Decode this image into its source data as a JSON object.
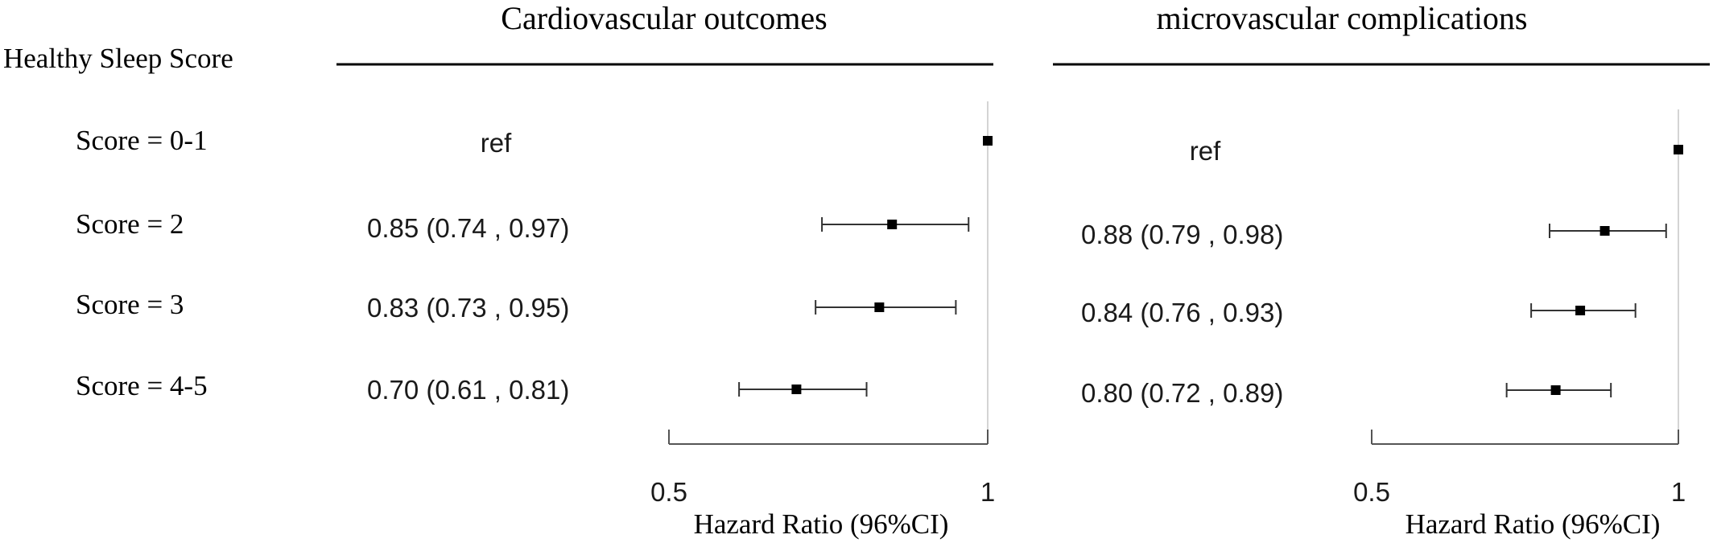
{
  "row_header": "Healthy Sleep Score",
  "rows": [
    "Score = 0-1",
    "Score = 2",
    "Score = 3",
    "Score = 4-5"
  ],
  "chart_data": [
    {
      "type": "forest",
      "title": "Cardiovascular outcomes",
      "xlabel": "Hazard Ratio (96%CI)",
      "xlim": [
        0.5,
        1
      ],
      "ticks": [
        0.5,
        1
      ],
      "tick_labels": [
        "0.5",
        "1"
      ],
      "reference_line": 1,
      "categories": [
        "Score = 0-1",
        "Score = 2",
        "Score = 3",
        "Score = 4-5"
      ],
      "labels": [
        "ref",
        "0.85 (0.74 , 0.97)",
        "0.83 (0.73 , 0.95)",
        "0.70 (0.61 , 0.81)"
      ],
      "estimates": [
        1,
        0.85,
        0.83,
        0.7
      ],
      "lower": [
        null,
        0.74,
        0.73,
        0.61
      ],
      "upper": [
        null,
        0.97,
        0.95,
        0.81
      ]
    },
    {
      "type": "forest",
      "title": "microvascular complications",
      "xlabel": "Hazard Ratio (96%CI)",
      "xlim": [
        0.5,
        1
      ],
      "ticks": [
        0.5,
        1
      ],
      "tick_labels": [
        "0.5",
        "1"
      ],
      "reference_line": 1,
      "categories": [
        "Score = 0-1",
        "Score = 2",
        "Score = 3",
        "Score = 4-5"
      ],
      "labels": [
        "ref",
        "0.88 (0.79 , 0.98)",
        "0.84 (0.76 , 0.93)",
        "0.80 (0.72 , 0.89)"
      ],
      "estimates": [
        1,
        0.88,
        0.84,
        0.8
      ],
      "lower": [
        null,
        0.79,
        0.76,
        0.72
      ],
      "upper": [
        null,
        0.98,
        0.93,
        0.89
      ]
    }
  ]
}
